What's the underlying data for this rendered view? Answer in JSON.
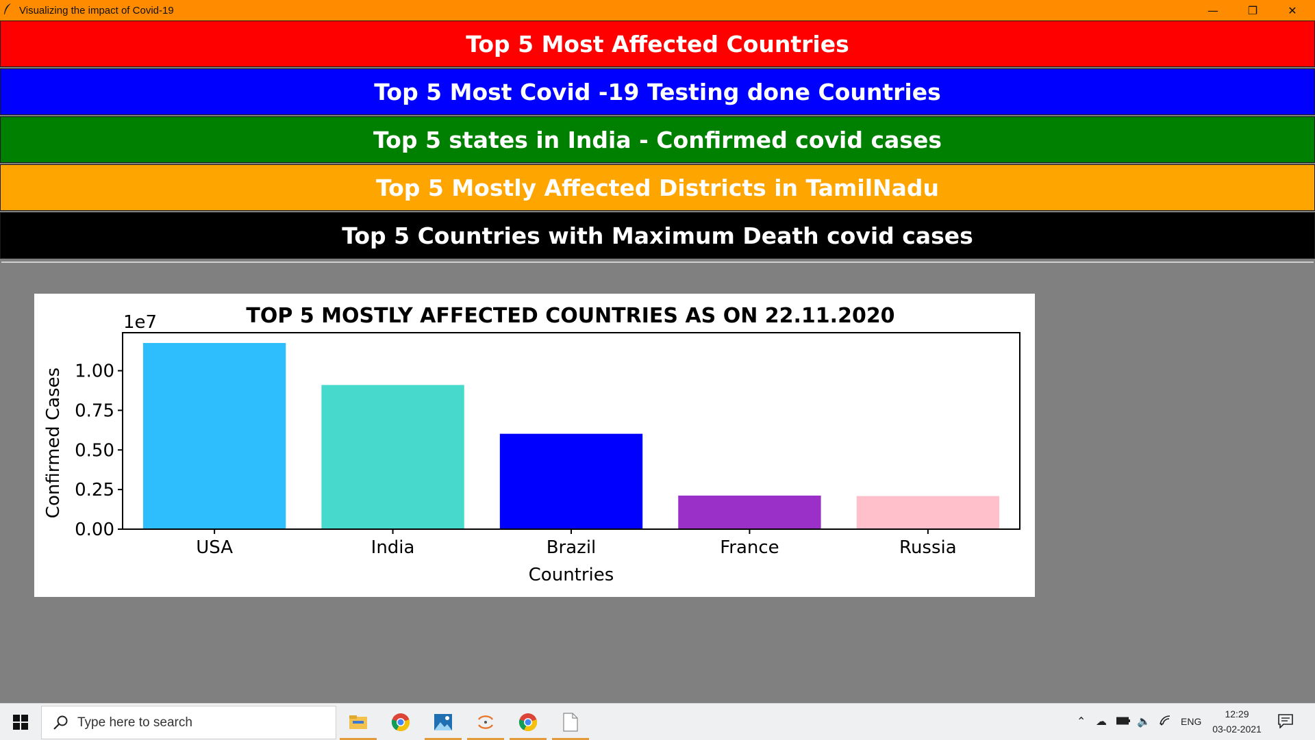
{
  "window": {
    "title": "Visualizing the impact of  Covid-19",
    "controls": {
      "minimize": "—",
      "maximize": "❐",
      "close": "✕"
    }
  },
  "buttons": [
    {
      "label": "Top 5 Most Affected Countries",
      "color": "#ff0000"
    },
    {
      "label": "Top 5 Most Covid -19 Testing done Countries",
      "color": "#0000ff"
    },
    {
      "label": "Top 5 states in India - Confirmed covid cases",
      "color": "#008000"
    },
    {
      "label": "Top 5 Mostly Affected Districts in TamilNadu",
      "color": "#ffa500"
    },
    {
      "label": "Top 5 Countries with Maximum Death covid cases",
      "color": "#000000"
    }
  ],
  "chart_data": {
    "type": "bar",
    "title": "TOP 5 MOSTLY AFFECTED COUNTRIES AS ON 22.11.2020",
    "xlabel": "Countries",
    "ylabel": "Confirmed Cases",
    "offset_label": "1e7",
    "categories": [
      "USA",
      "India",
      "Brazil",
      "France",
      "Russia"
    ],
    "values": [
      11750000,
      9100000,
      6020000,
      2120000,
      2090000
    ],
    "colors": [
      "#2ebdfd",
      "#48d9cd",
      "#0000ff",
      "#9b30c8",
      "#ffc0cb"
    ],
    "ylim": [
      0,
      12400000
    ],
    "yticks": [
      0,
      2500000,
      5000000,
      7500000,
      10000000
    ],
    "ytick_labels": [
      "0.00",
      "0.25",
      "0.50",
      "0.75",
      "1.00"
    ],
    "grid": false
  },
  "taskbar": {
    "search_placeholder": "Type here to search",
    "apps": [
      "file-explorer-icon",
      "chrome-icon",
      "photos-icon",
      "python-idle-icon",
      "chrome-icon",
      "document-icon"
    ],
    "tray_language": "ENG",
    "time": "12:29",
    "date": "03-02-2021"
  }
}
